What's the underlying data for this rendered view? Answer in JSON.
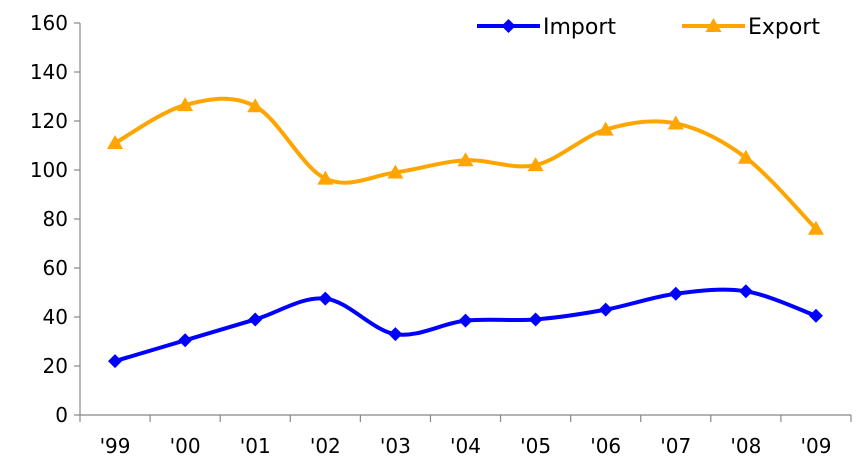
{
  "chart_data": {
    "type": "line",
    "title": "",
    "xlabel": "",
    "ylabel": "",
    "categories": [
      "'99",
      "'00",
      "'01",
      "'02",
      "'03",
      "'04",
      "'05",
      "'06",
      "'07",
      "'08",
      "'09"
    ],
    "ylim": [
      0,
      160
    ],
    "yticks": [
      0,
      20,
      40,
      60,
      80,
      100,
      120,
      140,
      160
    ],
    "smooth": true,
    "grid": false,
    "legend_position": "top-right",
    "series": [
      {
        "name": "Import",
        "color": "#0000FF",
        "marker": "diamond",
        "values": [
          22,
          30.5,
          39,
          47.5,
          33,
          38.5,
          39,
          43,
          49.5,
          50.5,
          40.5
        ]
      },
      {
        "name": "Export",
        "color": "#FFA500",
        "marker": "triangle",
        "values": [
          111,
          126.5,
          126,
          96.5,
          99,
          104,
          102,
          116.5,
          119,
          105,
          76
        ]
      }
    ]
  }
}
